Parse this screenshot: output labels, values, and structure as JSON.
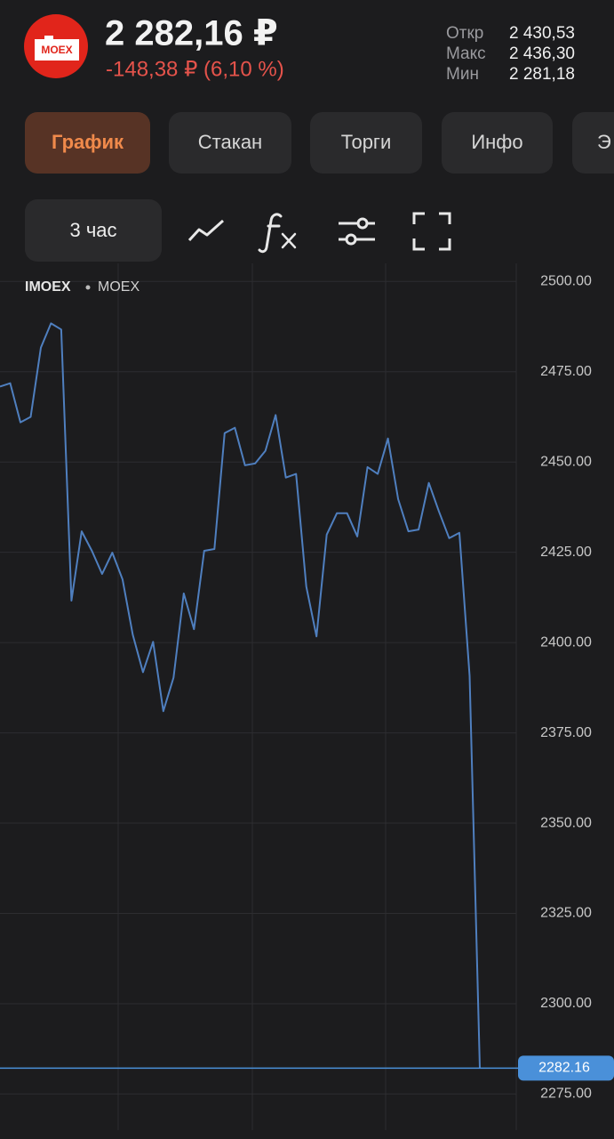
{
  "header": {
    "logo": "MOEX",
    "price": "2 282,16 ₽",
    "change": "-148,38 ₽ (6,10 %)",
    "stats": [
      {
        "label": "Откр",
        "value": "2 430,53"
      },
      {
        "label": "Макс",
        "value": "2 436,30"
      },
      {
        "label": "Мин",
        "value": "2 281,18"
      }
    ]
  },
  "tabs": [
    "График",
    "Стакан",
    "Торги",
    "Инфо",
    "Э"
  ],
  "toolbar": {
    "interval": "3 час"
  },
  "chart_data": {
    "type": "line",
    "ticker": "IMOEX",
    "exchange": "MOEX",
    "series": [
      {
        "color": "#4f7fbf",
        "values": [
          2470.9,
          2471.8,
          2461.0,
          2462.5,
          2481.7,
          2488.4,
          2486.7,
          2411.6,
          2430.8,
          2425.4,
          2419.0,
          2424.9,
          2417.5,
          2402.2,
          2391.8,
          2400.2,
          2381.0,
          2390.3,
          2413.6,
          2403.7,
          2425.4,
          2425.9,
          2458.0,
          2459.5,
          2449.1,
          2449.6,
          2453.1,
          2463.0,
          2445.7,
          2446.7,
          2415.5,
          2401.7,
          2429.9,
          2435.8,
          2435.8,
          2429.4,
          2448.6,
          2446.7,
          2456.5,
          2439.7,
          2430.8,
          2431.3,
          2444.2,
          2436.3,
          2428.9,
          2430.4,
          2390.8,
          2282.16
        ]
      }
    ],
    "ylim": [
      2265,
      2505
    ],
    "yticks": [
      {
        "value": 2500,
        "label": "2500.00"
      },
      {
        "value": 2475,
        "label": "2475.00"
      },
      {
        "value": 2450,
        "label": "2450.00"
      },
      {
        "value": 2425,
        "label": "2425.00"
      },
      {
        "value": 2400,
        "label": "2400.00"
      },
      {
        "value": 2375,
        "label": "2375.00"
      },
      {
        "value": 2350,
        "label": "2350.00"
      },
      {
        "value": 2325,
        "label": "2325.00"
      },
      {
        "value": 2300,
        "label": "2300.00"
      },
      {
        "value": 2275,
        "label": "2275.00"
      }
    ],
    "grid": true,
    "last_price": {
      "value": 2282.16,
      "label": "2282.16",
      "color": "#4a90d9"
    }
  }
}
